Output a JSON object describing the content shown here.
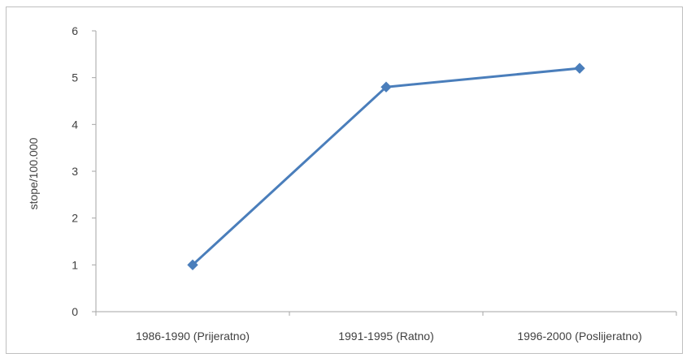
{
  "chart_data": {
    "type": "line",
    "categories": [
      "1986-1990 (Prijeratno)",
      "1991-1995 (Ratno)",
      "1996-2000 (Poslijeratno)"
    ],
    "series": [
      {
        "values": [
          1.0,
          4.8,
          5.2
        ],
        "color": "#4a7ebb",
        "marker": "diamond"
      }
    ],
    "ylabel": "stope/100.000",
    "ylim": [
      0,
      6
    ],
    "yticks": [
      0,
      1,
      2,
      3,
      4,
      5,
      6
    ],
    "grid": false,
    "legend": "none"
  }
}
